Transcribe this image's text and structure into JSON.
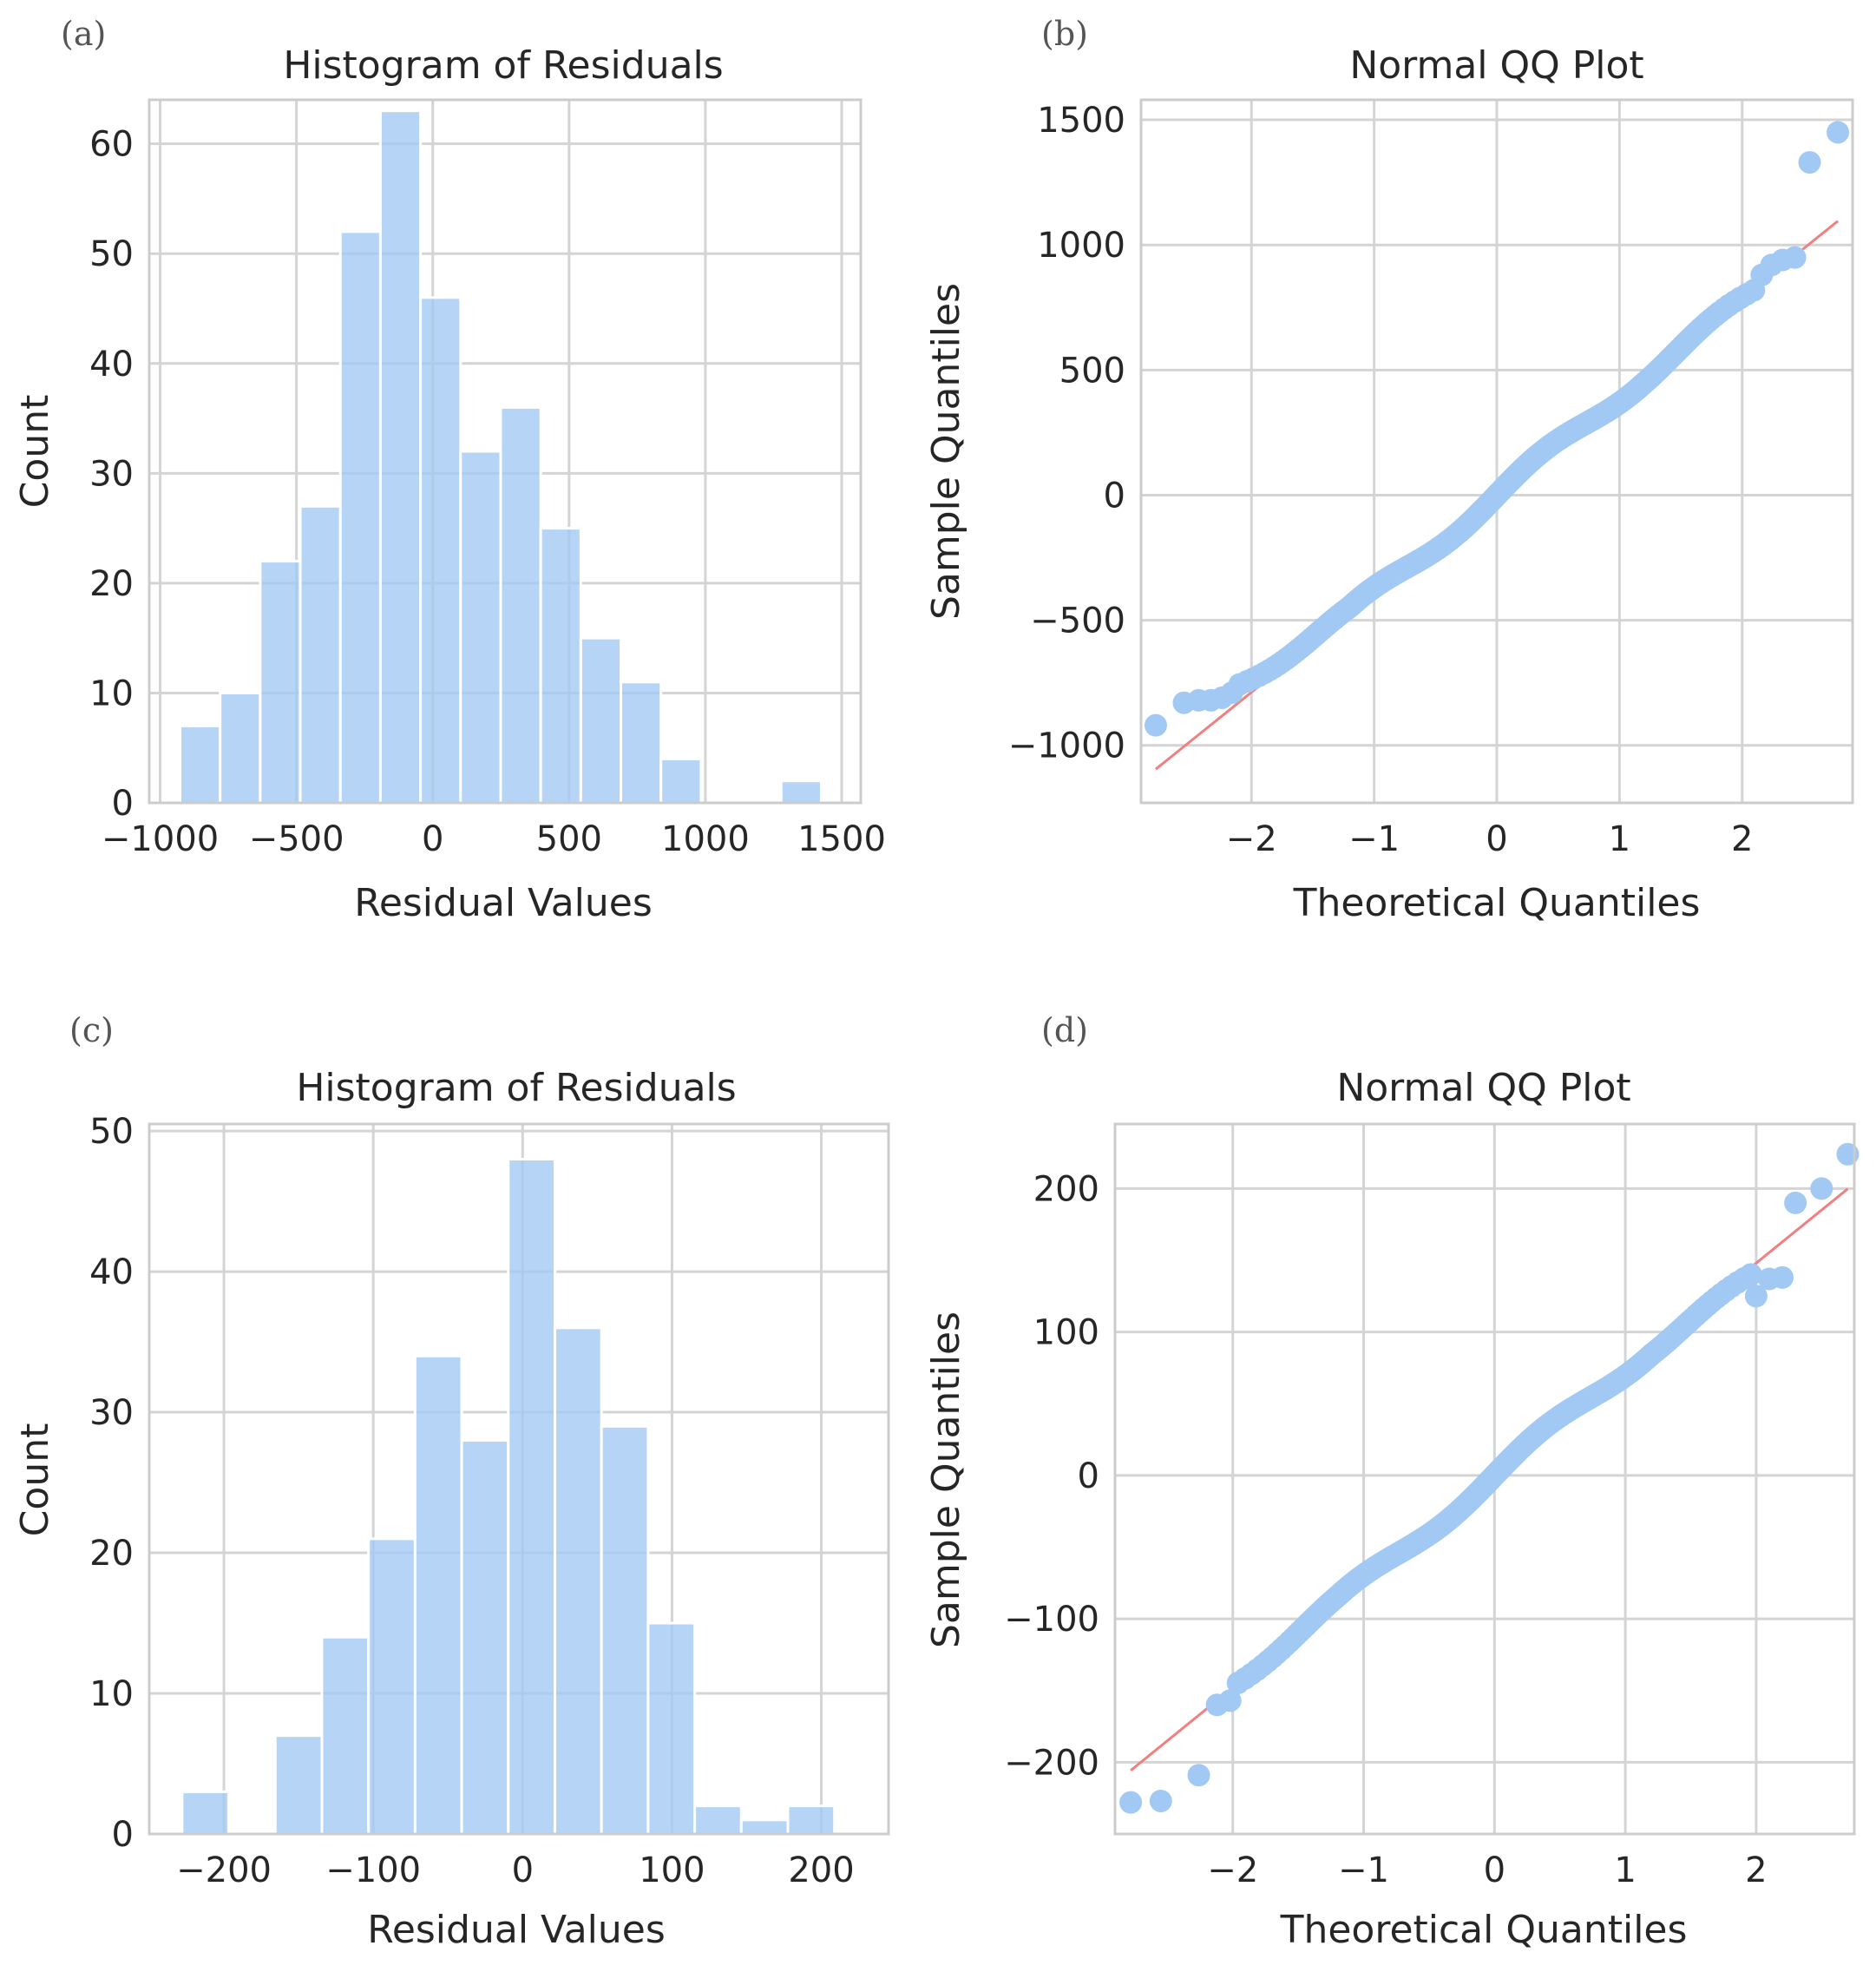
{
  "figure": {
    "background": "#ffffff",
    "bar_color": "#a1c9f4",
    "point_color": "#a1c9f4",
    "reference_line_color": "#f08080"
  },
  "chart_data": [
    {
      "panel": "(a)",
      "type": "bar",
      "title": "Histogram of Residuals",
      "xlabel": "Residual Values",
      "ylabel": "Count",
      "xlim": [
        -1040,
        1570
      ],
      "ylim": [
        0,
        64
      ],
      "xticks": [
        -1000,
        -500,
        0,
        500,
        1000,
        1500
      ],
      "xtick_labels": [
        "−1000",
        "−500",
        "0",
        "500",
        "1000",
        "1500"
      ],
      "yticks": [
        0,
        10,
        20,
        30,
        40,
        50,
        60
      ],
      "ytick_labels": [
        "0",
        "10",
        "20",
        "30",
        "40",
        "50",
        "60"
      ],
      "grid": true,
      "bin_width": 147,
      "bins": [
        {
          "left": -927,
          "count": 7
        },
        {
          "left": -780,
          "count": 10
        },
        {
          "left": -633,
          "count": 22
        },
        {
          "left": -486,
          "count": 27
        },
        {
          "left": -339,
          "count": 52
        },
        {
          "left": -192,
          "count": 63
        },
        {
          "left": -45,
          "count": 46
        },
        {
          "left": 102,
          "count": 32
        },
        {
          "left": 249,
          "count": 36
        },
        {
          "left": 396,
          "count": 25
        },
        {
          "left": 543,
          "count": 15
        },
        {
          "left": 690,
          "count": 11
        },
        {
          "left": 837,
          "count": 4
        },
        {
          "left": 984,
          "count": 0
        },
        {
          "left": 1131,
          "count": 0
        },
        {
          "left": 1278,
          "count": 2
        }
      ]
    },
    {
      "panel": "(b)",
      "type": "scatter",
      "title": "Normal QQ Plot",
      "xlabel": "Theoretical Quantiles",
      "ylabel": "Sample Quantiles",
      "xlim": [
        -2.9,
        2.9
      ],
      "ylim": [
        -1230,
        1580
      ],
      "xticks": [
        -2,
        -1,
        0,
        1,
        2
      ],
      "xtick_labels": [
        "−2",
        "−1",
        "0",
        "1",
        "2"
      ],
      "yticks": [
        -1000,
        -500,
        0,
        500,
        1000,
        1500
      ],
      "ytick_labels": [
        "−1000",
        "−500",
        "0",
        "500",
        "1000",
        "1500"
      ],
      "grid": true,
      "reference_line": {
        "slope": 394,
        "intercept": 0,
        "x_range": [
          -2.78,
          2.78
        ]
      },
      "tail_points": [
        [
          -2.78,
          -920
        ],
        [
          -2.55,
          -830
        ],
        [
          -2.43,
          -820
        ],
        [
          -2.33,
          -820
        ],
        [
          -2.24,
          -810
        ],
        [
          -2.16,
          -790
        ],
        [
          2.16,
          880
        ],
        [
          2.24,
          920
        ],
        [
          2.33,
          940
        ],
        [
          2.43,
          950
        ],
        [
          2.55,
          1330
        ],
        [
          2.78,
          1450
        ]
      ],
      "n_points": 360,
      "body_model": {
        "slope": 394,
        "intercept": 0,
        "wiggle_amplitude": 28,
        "upper_tail_bias": -20,
        "lower_tail_bias": 90
      }
    },
    {
      "panel": "(c)",
      "type": "bar",
      "title": "Histogram of Residuals",
      "xlabel": "Residual Values",
      "ylabel": "Count",
      "xlim": [
        -250,
        245
      ],
      "ylim": [
        0,
        50.5
      ],
      "xticks": [
        -200,
        -100,
        0,
        100,
        200
      ],
      "xtick_labels": [
        "−200",
        "−100",
        "0",
        "100",
        "200"
      ],
      "yticks": [
        0,
        10,
        20,
        30,
        40,
        50
      ],
      "ytick_labels": [
        "0",
        "10",
        "20",
        "30",
        "40",
        "50"
      ],
      "grid": true,
      "bin_width": 31.2,
      "bins": [
        {
          "left": -228,
          "count": 3
        },
        {
          "left": -196.8,
          "count": 0
        },
        {
          "left": -165.6,
          "count": 7
        },
        {
          "left": -134.4,
          "count": 14
        },
        {
          "left": -103.2,
          "count": 21
        },
        {
          "left": -72,
          "count": 34
        },
        {
          "left": -40.8,
          "count": 28
        },
        {
          "left": -9.6,
          "count": 48
        },
        {
          "left": 21.6,
          "count": 36
        },
        {
          "left": 52.8,
          "count": 29
        },
        {
          "left": 84,
          "count": 15
        },
        {
          "left": 115.2,
          "count": 2
        },
        {
          "left": 146.4,
          "count": 1
        },
        {
          "left": 177.6,
          "count": 2
        }
      ]
    },
    {
      "panel": "(d)",
      "type": "scatter",
      "title": "Normal QQ Plot",
      "xlabel": "Theoretical Quantiles",
      "ylabel": "Sample Quantiles",
      "xlim": [
        -2.9,
        2.75
      ],
      "ylim": [
        -250,
        245
      ],
      "xticks": [
        -2,
        -1,
        0,
        1,
        2
      ],
      "xtick_labels": [
        "−2",
        "−1",
        "0",
        "1",
        "2"
      ],
      "yticks": [
        -200,
        -100,
        0,
        100,
        200
      ],
      "ytick_labels": [
        "−200",
        "−100",
        "0",
        "100",
        "200"
      ],
      "grid": true,
      "reference_line": {
        "slope": 74,
        "intercept": 0,
        "x_range": [
          -2.78,
          2.7
        ]
      },
      "tail_points": [
        [
          -2.78,
          -228
        ],
        [
          -2.55,
          -227
        ],
        [
          -2.26,
          -209
        ],
        [
          -2.12,
          -160
        ],
        [
          -2.02,
          -157
        ],
        [
          2.0,
          125
        ],
        [
          2.1,
          137
        ],
        [
          2.2,
          138
        ],
        [
          2.3,
          190
        ],
        [
          2.5,
          200
        ],
        [
          2.7,
          224
        ]
      ],
      "n_points": 300,
      "body_model": {
        "slope": 74,
        "intercept": 0,
        "wiggle_amplitude": 5,
        "upper_tail_bias": -12,
        "lower_tail_bias": 6
      }
    }
  ]
}
